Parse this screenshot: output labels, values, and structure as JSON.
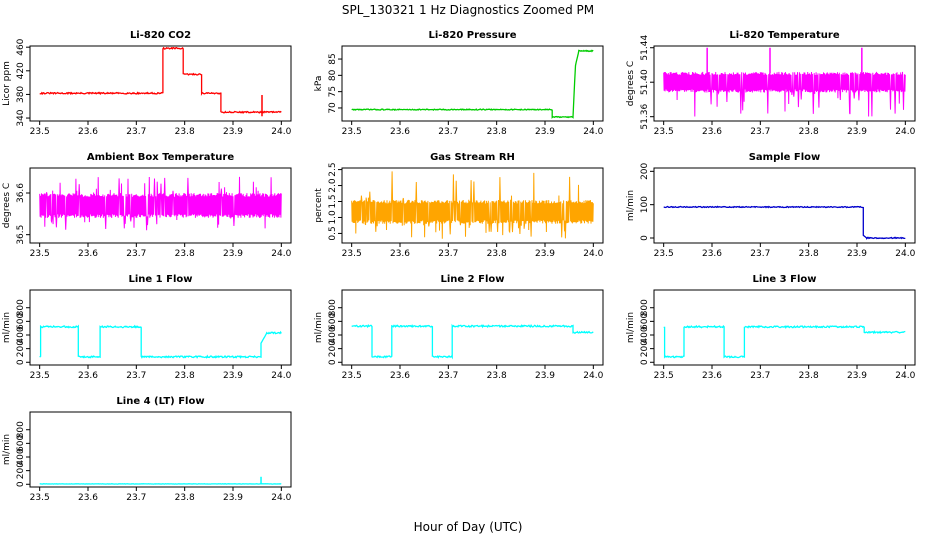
{
  "figure": {
    "title": "SPL_130321  1 Hz Diagnostics Zoomed PM",
    "xlabel": "Hour of Day (UTC)"
  },
  "chart_data": [
    {
      "type": "line",
      "title": "Li-820 CO2",
      "ylabel": "Licor ppm",
      "color": "#ff0000",
      "xlim": [
        23.5,
        24.0
      ],
      "ylim": [
        335,
        462
      ],
      "xticks": [
        "23.5",
        "23.6",
        "23.7",
        "23.8",
        "23.9",
        "24.0"
      ],
      "yticks": [
        "340",
        "380",
        "420",
        "460"
      ],
      "series": [
        {
          "style": "step",
          "noise": 1.2,
          "x": [
            23.5,
            23.755,
            23.755,
            23.797,
            23.797,
            23.835,
            23.835,
            23.875,
            23.875,
            24.0
          ],
          "y": [
            382,
            382,
            458,
            458,
            414,
            414,
            382,
            382,
            350,
            350
          ]
        }
      ],
      "spikes": [
        {
          "x": 23.96,
          "y0": 343,
          "y1": 379
        }
      ]
    },
    {
      "type": "line",
      "title": "Li-820 Pressure",
      "ylabel": "kPa",
      "color": "#00cc00",
      "xlim": [
        23.5,
        24.0
      ],
      "ylim": [
        66,
        89
      ],
      "xticks": [
        "23.5",
        "23.6",
        "23.7",
        "23.8",
        "23.9",
        "24.0"
      ],
      "yticks": [
        "70",
        "75",
        "80",
        "85"
      ],
      "series": [
        {
          "style": "step",
          "noise": 0.15,
          "x": [
            23.5,
            23.915,
            23.915,
            23.958,
            23.963,
            23.97,
            24.0
          ],
          "y": [
            69.5,
            69.5,
            67.2,
            67.2,
            83,
            87.5,
            87.5
          ]
        }
      ]
    },
    {
      "type": "band",
      "title": "Li-820 Temperature",
      "ylabel": "degrees C",
      "color": "#ff00ff",
      "xlim": [
        23.5,
        24.0
      ],
      "ylim": [
        51.355,
        51.442
      ],
      "xticks": [
        "23.5",
        "23.6",
        "23.7",
        "23.8",
        "23.9",
        "24.0"
      ],
      "yticks": [
        "51.36",
        "51.40",
        "51.44"
      ],
      "band": {
        "low": 51.388,
        "high": 51.412,
        "dip": 51.36,
        "seed": 7
      },
      "spikes": [
        {
          "x": 23.59,
          "y0": 51.41,
          "y1": 51.44
        },
        {
          "x": 23.72,
          "y0": 51.41,
          "y1": 51.44
        },
        {
          "x": 23.91,
          "y0": 51.41,
          "y1": 51.44
        }
      ]
    },
    {
      "type": "band",
      "title": "Ambient Box Temperature",
      "ylabel": "degrees C",
      "color": "#ff00ff",
      "xlim": [
        23.5,
        24.0
      ],
      "ylim": [
        36.48,
        36.66
      ],
      "xticks": [
        "23.5",
        "23.6",
        "23.7",
        "23.8",
        "23.9",
        "24.0"
      ],
      "yticks": [
        "36.5",
        "36.6"
      ],
      "band": {
        "low": 36.54,
        "high": 36.6,
        "dip": 36.51,
        "rise": 36.64,
        "seed": 11
      }
    },
    {
      "type": "band",
      "title": "Gas Stream RH",
      "ylabel": "percent",
      "color": "#ffa500",
      "xlim": [
        23.5,
        24.0
      ],
      "ylim": [
        0.2,
        2.55
      ],
      "xticks": [
        "23.5",
        "23.6",
        "23.7",
        "23.8",
        "23.9",
        "24.0"
      ],
      "yticks": [
        "0.5",
        "1.0",
        "1.5",
        "2.0",
        "2.5"
      ],
      "band": {
        "low": 0.8,
        "high": 1.55,
        "dip": 0.28,
        "rise": 2.5,
        "seed": 23
      }
    },
    {
      "type": "line",
      "title": "Sample Flow",
      "ylabel": "ml/min",
      "color": "#0000cc",
      "xlim": [
        23.5,
        24.0
      ],
      "ylim": [
        -15,
        210
      ],
      "xticks": [
        "23.5",
        "23.6",
        "23.7",
        "23.8",
        "23.9",
        "24.0"
      ],
      "yticks": [
        "0",
        "100",
        "200"
      ],
      "series": [
        {
          "style": "step",
          "noise": 1.5,
          "x": [
            23.5,
            23.913,
            23.913,
            23.92,
            24.0
          ],
          "y": [
            93,
            93,
            8,
            0,
            0
          ]
        }
      ]
    },
    {
      "type": "line",
      "title": "Line 1 Flow",
      "ylabel": "ml/min",
      "color": "#00ffff",
      "xlim": [
        23.5,
        24.0
      ],
      "ylim": [
        -40,
        1060
      ],
      "xticks": [
        "23.5",
        "23.6",
        "23.7",
        "23.8",
        "23.9",
        "24.0"
      ],
      "yticks": [
        "0",
        "200",
        "400",
        "600",
        "800"
      ],
      "series": [
        {
          "style": "step",
          "noise": 12,
          "x": [
            23.5,
            23.502,
            23.502,
            23.58,
            23.58,
            23.625,
            23.625,
            23.71,
            23.71,
            23.958,
            23.958,
            23.97,
            24.0
          ],
          "y": [
            80,
            80,
            520,
            520,
            80,
            80,
            520,
            520,
            80,
            80,
            280,
            430,
            430
          ]
        }
      ]
    },
    {
      "type": "line",
      "title": "Line 2 Flow",
      "ylabel": "ml/min",
      "color": "#00ffff",
      "xlim": [
        23.5,
        24.0
      ],
      "ylim": [
        -40,
        1060
      ],
      "xticks": [
        "23.5",
        "23.6",
        "23.7",
        "23.8",
        "23.9",
        "24.0"
      ],
      "yticks": [
        "0",
        "200",
        "400",
        "600",
        "800"
      ],
      "series": [
        {
          "style": "step",
          "noise": 12,
          "x": [
            23.5,
            23.542,
            23.542,
            23.583,
            23.583,
            23.667,
            23.667,
            23.708,
            23.708,
            23.958,
            23.958,
            24.0
          ],
          "y": [
            530,
            530,
            80,
            80,
            530,
            530,
            80,
            80,
            530,
            530,
            440,
            440
          ]
        }
      ]
    },
    {
      "type": "line",
      "title": "Line 3 Flow",
      "ylabel": "ml/min",
      "color": "#00ffff",
      "xlim": [
        23.5,
        24.0
      ],
      "ylim": [
        -40,
        1060
      ],
      "xticks": [
        "23.5",
        "23.6",
        "23.7",
        "23.8",
        "23.9",
        "24.0"
      ],
      "yticks": [
        "0",
        "200",
        "400",
        "600",
        "800"
      ],
      "series": [
        {
          "style": "step",
          "noise": 12,
          "x": [
            23.5,
            23.502,
            23.502,
            23.542,
            23.542,
            23.625,
            23.625,
            23.667,
            23.667,
            23.915,
            23.915,
            24.0
          ],
          "y": [
            520,
            520,
            80,
            80,
            520,
            520,
            80,
            80,
            520,
            520,
            440,
            440
          ]
        }
      ]
    },
    {
      "type": "line",
      "title": "Line 4 (LT) Flow",
      "ylabel": "ml/min",
      "color": "#00ffff",
      "xlim": [
        23.5,
        24.0
      ],
      "ylim": [
        -40,
        1060
      ],
      "xticks": [
        "23.5",
        "23.6",
        "23.7",
        "23.8",
        "23.9",
        "24.0"
      ],
      "yticks": [
        "0",
        "200",
        "400",
        "600",
        "800"
      ],
      "series": [
        {
          "style": "step",
          "noise": 2,
          "x": [
            23.5,
            24.0
          ],
          "y": [
            5,
            5
          ]
        }
      ],
      "spikes": [
        {
          "x": 23.958,
          "y0": 5,
          "y1": 110
        }
      ]
    }
  ]
}
